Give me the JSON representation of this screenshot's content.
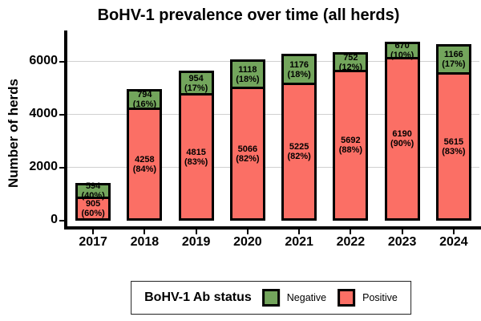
{
  "title": "BoHV-1 prevalence over time (all herds)",
  "y_axis": {
    "label": "Number of herds",
    "tick_labels": [
      "0",
      "2000",
      "4000",
      "6000"
    ]
  },
  "x_axis": {
    "tick_labels": [
      "2017",
      "2018",
      "2019",
      "2020",
      "2021",
      "2022",
      "2023",
      "2024"
    ]
  },
  "legend": {
    "title": "BoHV-1 Ab status",
    "items": [
      {
        "label": "Negative",
        "color": "#73A55C"
      },
      {
        "label": "Positive",
        "color": "#FB6F65"
      }
    ]
  },
  "chart_data": {
    "type": "bar",
    "stacked": true,
    "title": "BoHV-1 prevalence over time (all herds)",
    "xlabel": "",
    "ylabel": "Number of herds",
    "categories": [
      "2017",
      "2018",
      "2019",
      "2020",
      "2021",
      "2022",
      "2023",
      "2024"
    ],
    "series": [
      {
        "name": "Negative",
        "color": "#73A55C",
        "values": [
          594,
          794,
          954,
          1118,
          1176,
          752,
          670,
          1166
        ],
        "percent_labels": [
          "40%",
          "16%",
          "17%",
          "18%",
          "18%",
          "12%",
          "10%",
          "17%"
        ]
      },
      {
        "name": "Positive",
        "color": "#FB6F65",
        "values": [
          905,
          4258,
          4815,
          5066,
          5225,
          5692,
          6190,
          5615
        ],
        "percent_labels": [
          "60%",
          "84%",
          "83%",
          "82%",
          "82%",
          "88%",
          "90%",
          "83%"
        ]
      }
    ],
    "yticks": [
      0,
      2000,
      4000,
      6000
    ],
    "ylim": [
      0,
      7180
    ],
    "grid": true,
    "gridline_color": "#D0D0D0",
    "bar_outline_color": "#000000",
    "legend_position": "bottom"
  }
}
